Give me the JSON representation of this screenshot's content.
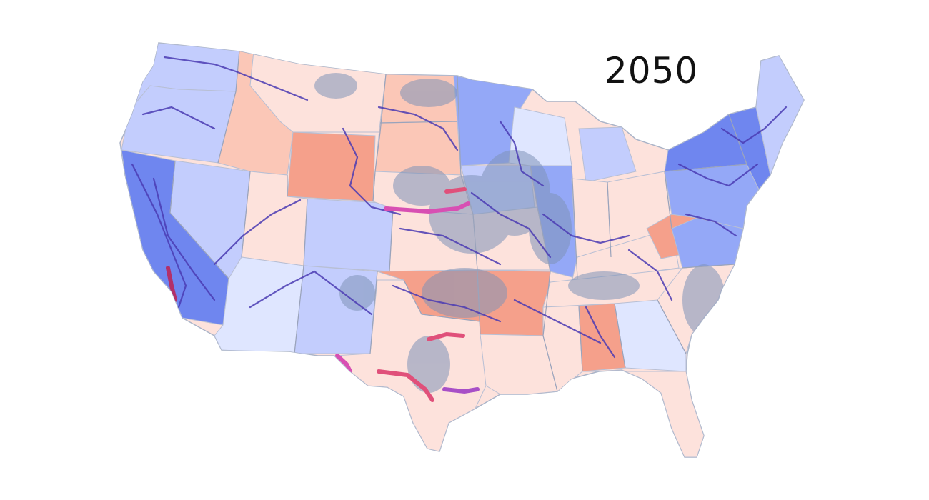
{
  "year_label": "2050",
  "legend_colors": {
    "blue_state_light": "#dfe6ff",
    "blue_state_medium": "#c3cdfd",
    "blue_state_strong": "#94a8f7",
    "blue_state_deep": "#6f86ef",
    "red_state_light": "#fde2dc",
    "red_state_medium": "#fbc7b7",
    "red_state_strong": "#f5a08b",
    "land_overlay": "#7f93b8",
    "network_line": "#4b3bb3",
    "highlight_line": "#e0507a"
  }
}
